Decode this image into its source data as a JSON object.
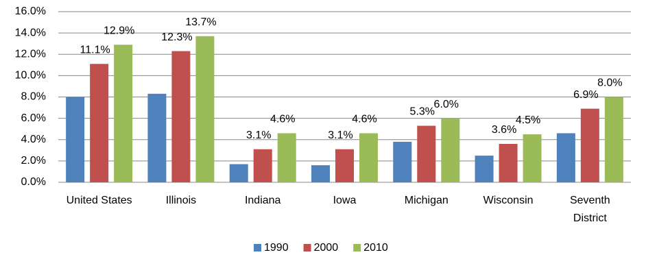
{
  "chart_data": {
    "type": "bar",
    "categories": [
      "United States",
      "Illinois",
      "Indiana",
      "Iowa",
      "Michigan",
      "Wisconsin",
      "Seventh District"
    ],
    "series": [
      {
        "name": "1990",
        "color": "#4f81bd",
        "values": [
          8.0,
          8.3,
          1.7,
          1.6,
          3.8,
          2.5,
          4.6
        ]
      },
      {
        "name": "2000",
        "color": "#c0504d",
        "values": [
          11.1,
          12.3,
          3.1,
          3.1,
          5.3,
          3.6,
          6.9
        ],
        "value_labels": [
          "11.1%",
          "12.3%",
          "3.1%",
          "3.1%",
          "5.3%",
          "3.6%",
          "6.9%"
        ]
      },
      {
        "name": "2010",
        "color": "#9bbb59",
        "values": [
          12.9,
          13.7,
          4.6,
          4.6,
          6.0,
          4.5,
          8.0
        ],
        "value_labels": [
          "12.9%",
          "13.7%",
          "4.6%",
          "4.6%",
          "6.0%",
          "4.5%",
          "8.0%"
        ]
      }
    ],
    "ylim": [
      0,
      16
    ],
    "yticks": [
      {
        "value": 0,
        "label": "0.0%"
      },
      {
        "value": 2,
        "label": "2.0%"
      },
      {
        "value": 4,
        "label": "4.0%"
      },
      {
        "value": 6,
        "label": "6.0%"
      },
      {
        "value": 8,
        "label": "8.0%"
      },
      {
        "value": 10,
        "label": "10.0%"
      },
      {
        "value": 12,
        "label": "12.0%"
      },
      {
        "value": 14,
        "label": "14.0%"
      },
      {
        "value": 16,
        "label": "16.0%"
      }
    ],
    "grid": true,
    "legend": "bottom"
  }
}
